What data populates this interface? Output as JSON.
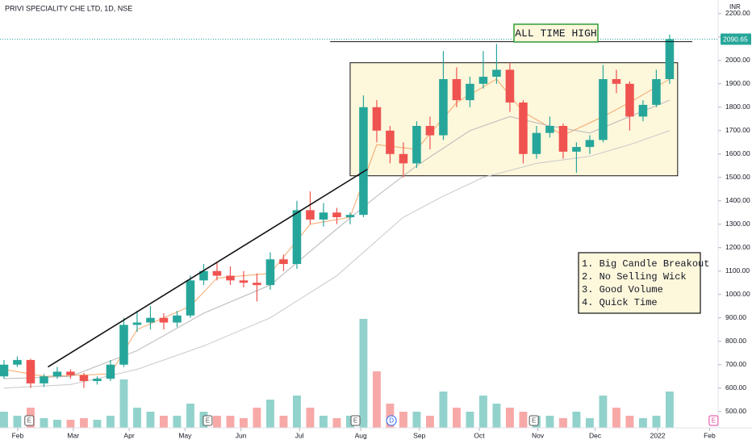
{
  "chart_data": {
    "type": "candlestick",
    "title": "PRIVI SPECIALITY CHE LTD, 1D, NSE",
    "currency": "INR",
    "open": [
      650,
      700,
      720,
      620,
      650,
      670,
      655,
      630,
      640,
      700,
      870,
      880,
      900,
      880,
      910,
      1060,
      1100,
      1080,
      1060,
      1050,
      1040,
      1150,
      1130,
      1360,
      1320,
      1350,
      1330,
      1340,
      1800,
      1700,
      1600,
      1560,
      1720,
      1680,
      1920,
      1830,
      1900,
      1930,
      1960,
      1820,
      1600,
      1690,
      1720,
      1610,
      1630,
      1660,
      1920,
      1900,
      1760,
      1810,
      1920
    ],
    "high": [
      720,
      735,
      725,
      660,
      690,
      680,
      665,
      650,
      720,
      900,
      930,
      950,
      920,
      930,
      1080,
      1130,
      1140,
      1120,
      1100,
      1090,
      1180,
      1170,
      1400,
      1440,
      1390,
      1370,
      1350,
      1850,
      1830,
      1720,
      1650,
      1740,
      1760,
      2040,
      1970,
      1930,
      2040,
      2070,
      1990,
      1830,
      1720,
      1760,
      1730,
      1650,
      1680,
      1980,
      1960,
      1910,
      1830,
      1960,
      2110
    ],
    "low": [
      640,
      690,
      600,
      605,
      640,
      640,
      600,
      615,
      630,
      690,
      840,
      850,
      850,
      860,
      900,
      1040,
      1060,
      1040,
      1030,
      970,
      1020,
      1100,
      1110,
      1300,
      1290,
      1300,
      1300,
      1330,
      1650,
      1560,
      1500,
      1540,
      1620,
      1660,
      1800,
      1800,
      1880,
      1900,
      1780,
      1560,
      1580,
      1670,
      1580,
      1520,
      1600,
      1650,
      1860,
      1700,
      1740,
      1800,
      1900
    ],
    "close": [
      700,
      720,
      620,
      650,
      670,
      655,
      630,
      640,
      700,
      870,
      880,
      900,
      880,
      910,
      1060,
      1100,
      1080,
      1060,
      1050,
      1040,
      1150,
      1130,
      1360,
      1320,
      1350,
      1330,
      1340,
      1800,
      1700,
      1600,
      1560,
      1720,
      1680,
      1920,
      1830,
      1900,
      1930,
      1960,
      1820,
      1600,
      1690,
      1720,
      1610,
      1630,
      1660,
      1920,
      1900,
      1760,
      1810,
      1920,
      2090.65
    ],
    "volume": [
      20,
      15,
      25,
      12,
      10,
      10,
      12,
      10,
      15,
      60,
      25,
      20,
      15,
      15,
      30,
      20,
      15,
      15,
      12,
      25,
      35,
      15,
      40,
      25,
      15,
      12,
      15,
      135,
      70,
      30,
      20,
      20,
      15,
      45,
      25,
      20,
      40,
      30,
      25,
      20,
      15,
      15,
      12,
      20,
      12,
      40,
      25,
      15,
      12,
      15,
      45
    ],
    "volume_lim": [
      0,
      150
    ],
    "up_color": "#26a69a",
    "down_color": "#ef5350",
    "lines": [
      {
        "color": "#f4a66a",
        "x": [
          0,
          3,
          8,
          10,
          14,
          16,
          20,
          23,
          26,
          28,
          31,
          34,
          37,
          39,
          42,
          45,
          47,
          50
        ],
        "values": [
          680,
          650,
          660,
          850,
          950,
          1070,
          1090,
          1300,
          1330,
          1640,
          1620,
          1820,
          1920,
          1780,
          1680,
          1760,
          1820,
          1920
        ]
      },
      {
        "color": "#b8b8b8",
        "x": [
          0,
          5,
          10,
          15,
          20,
          25,
          28,
          31,
          35,
          38,
          41,
          44,
          47,
          50
        ],
        "values": [
          640,
          650,
          760,
          920,
          1040,
          1280,
          1420,
          1550,
          1700,
          1760,
          1720,
          1690,
          1760,
          1830
        ]
      },
      {
        "color": "#c9c9c9",
        "x": [
          0,
          5,
          10,
          15,
          20,
          25,
          27,
          30,
          33,
          36,
          40,
          44,
          47,
          50
        ],
        "values": [
          600,
          615,
          680,
          780,
          900,
          1080,
          1180,
          1330,
          1420,
          1500,
          1560,
          1590,
          1640,
          1700
        ]
      }
    ],
    "trendline": {
      "x": [
        3.3,
        27.3
      ],
      "values": [
        690,
        1535
      ]
    },
    "ath_line": {
      "x": [
        24.5,
        51.7
      ],
      "values": [
        2080,
        2080
      ]
    },
    "range_box": {
      "x": [
        26,
        50.6
      ],
      "values": [
        1507,
        1990
      ]
    },
    "ath_label": "ALL TIME HIGH",
    "notes": [
      "1. Big Candle Breakout",
      "2. No Selling Wick",
      "3. Good Volume",
      "4. Quick Time"
    ],
    "events": [
      {
        "x": 1.9,
        "label": "E"
      },
      {
        "x": 15.3,
        "label": "E"
      },
      {
        "x": 26.4,
        "label": "E"
      },
      {
        "x": 29.1,
        "label": "D"
      },
      {
        "x": 39.8,
        "label": "E"
      },
      {
        "x": 53.3,
        "label": "E"
      }
    ],
    "xlim": [
      -0.3,
      53.64
    ],
    "xticks": [
      {
        "value": 1.03,
        "label": "Feb"
      },
      {
        "value": 5.2,
        "label": "Mar"
      },
      {
        "value": 9.4,
        "label": "Apr"
      },
      {
        "value": 13.6,
        "label": "May"
      },
      {
        "value": 17.8,
        "label": "Jun"
      },
      {
        "value": 22.2,
        "label": "Jul"
      },
      {
        "value": 26.8,
        "label": "Aug"
      },
      {
        "value": 31.2,
        "label": "Sep"
      },
      {
        "value": 35.7,
        "label": "Oct"
      },
      {
        "value": 40.1,
        "label": "Nov"
      },
      {
        "value": 44.4,
        "label": "Dec"
      },
      {
        "value": 49.1,
        "label": "2022"
      },
      {
        "value": 53.0,
        "label": "Feb"
      }
    ],
    "ylim": [
      430,
      2258
    ],
    "yticks": [
      {
        "value": 500,
        "label": "500.00"
      },
      {
        "value": 600,
        "label": "600.00"
      },
      {
        "value": 700,
        "label": "700.00"
      },
      {
        "value": 800,
        "label": "800.00"
      },
      {
        "value": 900,
        "label": "900.00"
      },
      {
        "value": 1000,
        "label": "1000.00"
      },
      {
        "value": 1100,
        "label": "1100.00"
      },
      {
        "value": 1200,
        "label": "1200.00"
      },
      {
        "value": 1300,
        "label": "1300.00"
      },
      {
        "value": 1400,
        "label": "1400.00"
      },
      {
        "value": 1500,
        "label": "1500.00"
      },
      {
        "value": 1600,
        "label": "1600.00"
      },
      {
        "value": 1700,
        "label": "1700.00"
      },
      {
        "value": 1800,
        "label": "1800.00"
      },
      {
        "value": 1900,
        "label": "1900.00"
      },
      {
        "value": 2000,
        "label": "2000.00"
      },
      {
        "value": 2100,
        "label": "2100.00"
      },
      {
        "value": 2200,
        "label": "2200.00"
      }
    ]
  }
}
